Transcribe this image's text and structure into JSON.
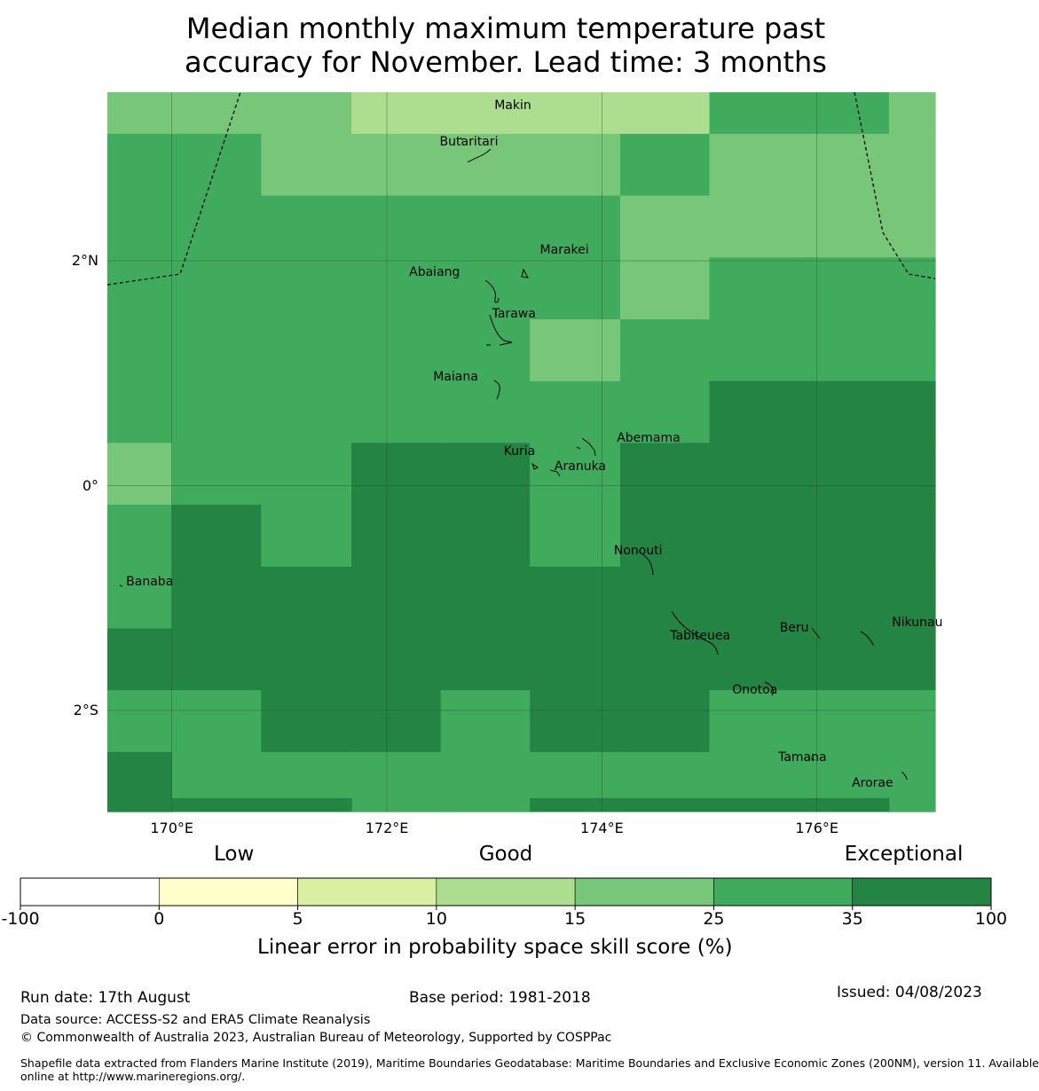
{
  "title_line1": "Median monthly maximum temperature past",
  "title_line2": "accuracy for November. Lead time: 3 months",
  "map": {
    "lon_range": [
      169.4,
      177.1
    ],
    "lat_range": [
      -2.9,
      3.5
    ],
    "lon_ticks": [
      {
        "value": 170,
        "label": "170°E"
      },
      {
        "value": 172,
        "label": "172°E"
      },
      {
        "value": 174,
        "label": "174°E"
      },
      {
        "value": 176,
        "label": "176°E"
      }
    ],
    "lat_ticks": [
      {
        "value": 2,
        "label": "2°N"
      },
      {
        "value": 0,
        "label": "0°"
      },
      {
        "value": -2,
        "label": "2°S"
      }
    ],
    "cell_lons": [
      169.4,
      170.0,
      170.83,
      171.67,
      172.5,
      173.33,
      174.17,
      175.0,
      175.83,
      176.67,
      177.1
    ],
    "cell_lats": [
      3.5,
      3.13,
      2.58,
      2.03,
      1.48,
      0.93,
      0.38,
      -0.17,
      -0.72,
      -1.27,
      -1.82,
      -2.37,
      -2.9
    ],
    "grid_note": "",
    "skill_grid": [
      [
        4,
        4,
        4,
        3,
        3,
        3,
        3,
        5,
        5,
        4
      ],
      [
        5,
        5,
        4,
        4,
        4,
        4,
        5,
        4,
        4,
        4
      ],
      [
        5,
        5,
        5,
        5,
        5,
        5,
        4,
        4,
        4,
        4
      ],
      [
        5,
        5,
        5,
        5,
        5,
        5,
        4,
        5,
        5,
        5
      ],
      [
        5,
        5,
        5,
        5,
        5,
        4,
        5,
        5,
        5,
        5
      ],
      [
        5,
        5,
        5,
        5,
        5,
        5,
        5,
        6,
        6,
        6
      ],
      [
        4,
        5,
        5,
        6,
        6,
        5,
        6,
        6,
        6,
        6
      ],
      [
        5,
        6,
        5,
        6,
        6,
        5,
        6,
        6,
        6,
        6
      ],
      [
        5,
        6,
        6,
        6,
        6,
        6,
        6,
        6,
        6,
        6
      ],
      [
        6,
        6,
        6,
        6,
        6,
        6,
        6,
        6,
        6,
        6
      ],
      [
        5,
        5,
        6,
        6,
        5,
        6,
        6,
        5,
        5,
        5
      ],
      [
        6,
        5,
        5,
        5,
        5,
        5,
        5,
        5,
        5,
        5
      ]
    ],
    "bottom_strip_cols": [
      1,
      2,
      5,
      6,
      7,
      8
    ],
    "islands": [
      {
        "name": "Makin",
        "lon": 173.0,
        "lat": 3.38
      },
      {
        "name": "Butaritari",
        "lon": 172.78,
        "lat": 3.05
      },
      {
        "name": "Marakei",
        "lon": 173.3,
        "lat": 2.01
      },
      {
        "name": "Abaiang",
        "lon": 172.95,
        "lat": 1.85
      },
      {
        "name": "Tarawa",
        "lon": 173.02,
        "lat": 1.4
      },
      {
        "name": "Maiana",
        "lon": 173.0,
        "lat": 0.93
      },
      {
        "name": "Abemama",
        "lon": 173.85,
        "lat": 0.4
      },
      {
        "name": "Kuria",
        "lon": 173.4,
        "lat": 0.22
      },
      {
        "name": "Aranuka",
        "lon": 173.6,
        "lat": 0.17
      },
      {
        "name": "Nonouti",
        "lon": 174.4,
        "lat": -0.65
      },
      {
        "name": "Banaba",
        "lon": 169.55,
        "lat": -0.86
      },
      {
        "name": "Tabiteuea",
        "lon": 174.8,
        "lat": -1.4
      },
      {
        "name": "Beru",
        "lon": 176.0,
        "lat": -1.33
      },
      {
        "name": "Nikunau",
        "lon": 176.45,
        "lat": -1.38
      },
      {
        "name": "Onotoa",
        "lon": 175.55,
        "lat": -1.8
      },
      {
        "name": "Tamana",
        "lon": 175.97,
        "lat": -2.5
      },
      {
        "name": "Arorae",
        "lon": 176.82,
        "lat": -2.65
      }
    ]
  },
  "colorbar": {
    "category_labels": [
      {
        "label": "Low",
        "pos": 0.22
      },
      {
        "label": "Good",
        "pos": 0.5
      },
      {
        "label": "Exceptional",
        "pos": 0.91
      }
    ],
    "bounds": [
      "-100",
      "0",
      "5",
      "10",
      "15",
      "25",
      "35",
      "100"
    ],
    "colors": [
      "#ffffff",
      "#ffffcc",
      "#d9f0a3",
      "#addd8e",
      "#78c679",
      "#41ab5d",
      "#238443"
    ],
    "label": "Linear error in probability space skill score (%)"
  },
  "footer": {
    "run_date": "Run date: 17th August",
    "base_period": "Base period: 1981-2018",
    "issued": "Issued: 04/08/2023",
    "data_source": "Data source: ACCESS-S2 and ERA5 Climate Reanalysis",
    "copyright": "© Commonwealth of Australia 2023, Australian Bureau of Meteorology, Supported by COSPPac",
    "shapefile_line1": "Shapefile data extracted from Flanders Marine Institute (2019), Maritime Boundaries Geodatabase: Maritime Boundaries and Exclusive Economic Zones (200NM), version 11. Available",
    "shapefile_line2": "online at http://www.marineregions.org/."
  }
}
